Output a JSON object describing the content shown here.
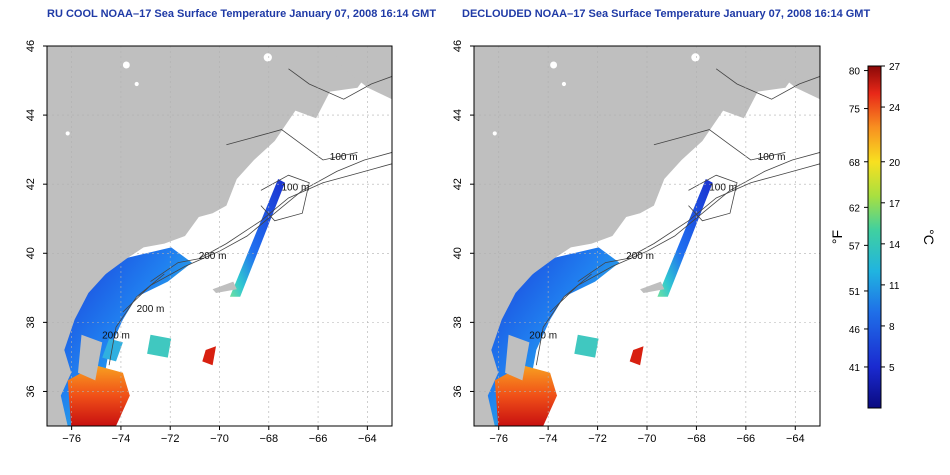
{
  "panels": [
    {
      "title": "RU COOL NOAA–17 Sea Surface Temperature January 07, 2008 16:14 GMT",
      "mode": "cool",
      "contour_labels": [
        "100 m",
        "100 m",
        "200 m",
        "200 m",
        "200 m"
      ]
    },
    {
      "title": "DECLOUDED NOAA–17 Sea Surface Temperature January 07, 2008 16:14 GMT",
      "mode": "declouded",
      "contour_labels": [
        "100 m",
        "100 m",
        "200 m",
        "200 m"
      ]
    }
  ],
  "map_axes": {
    "lon_ticks": [
      "−76",
      "−74",
      "−72",
      "−70",
      "−68",
      "−66",
      "−64"
    ],
    "lat_ticks": [
      "36",
      "38",
      "40",
      "42",
      "44",
      "46"
    ],
    "lon_range": [
      -77.0,
      -63.0
    ],
    "lat_range": [
      35.0,
      46.0
    ]
  },
  "colorbar": {
    "f_label": "°F",
    "c_label": "°C",
    "f_ticks": [
      "80",
      "75",
      "68",
      "62",
      "57",
      "51",
      "46",
      "41"
    ],
    "c_ticks": [
      "27",
      "24",
      "20",
      "17",
      "14",
      "11",
      "8",
      "5"
    ],
    "c_range": [
      2,
      27
    ]
  },
  "colors": {
    "land": "#bfbfbf",
    "ocean": "#ffffff",
    "title": "#1f3aa6",
    "contour": "#444444",
    "grid": "#b0b0b0"
  }
}
